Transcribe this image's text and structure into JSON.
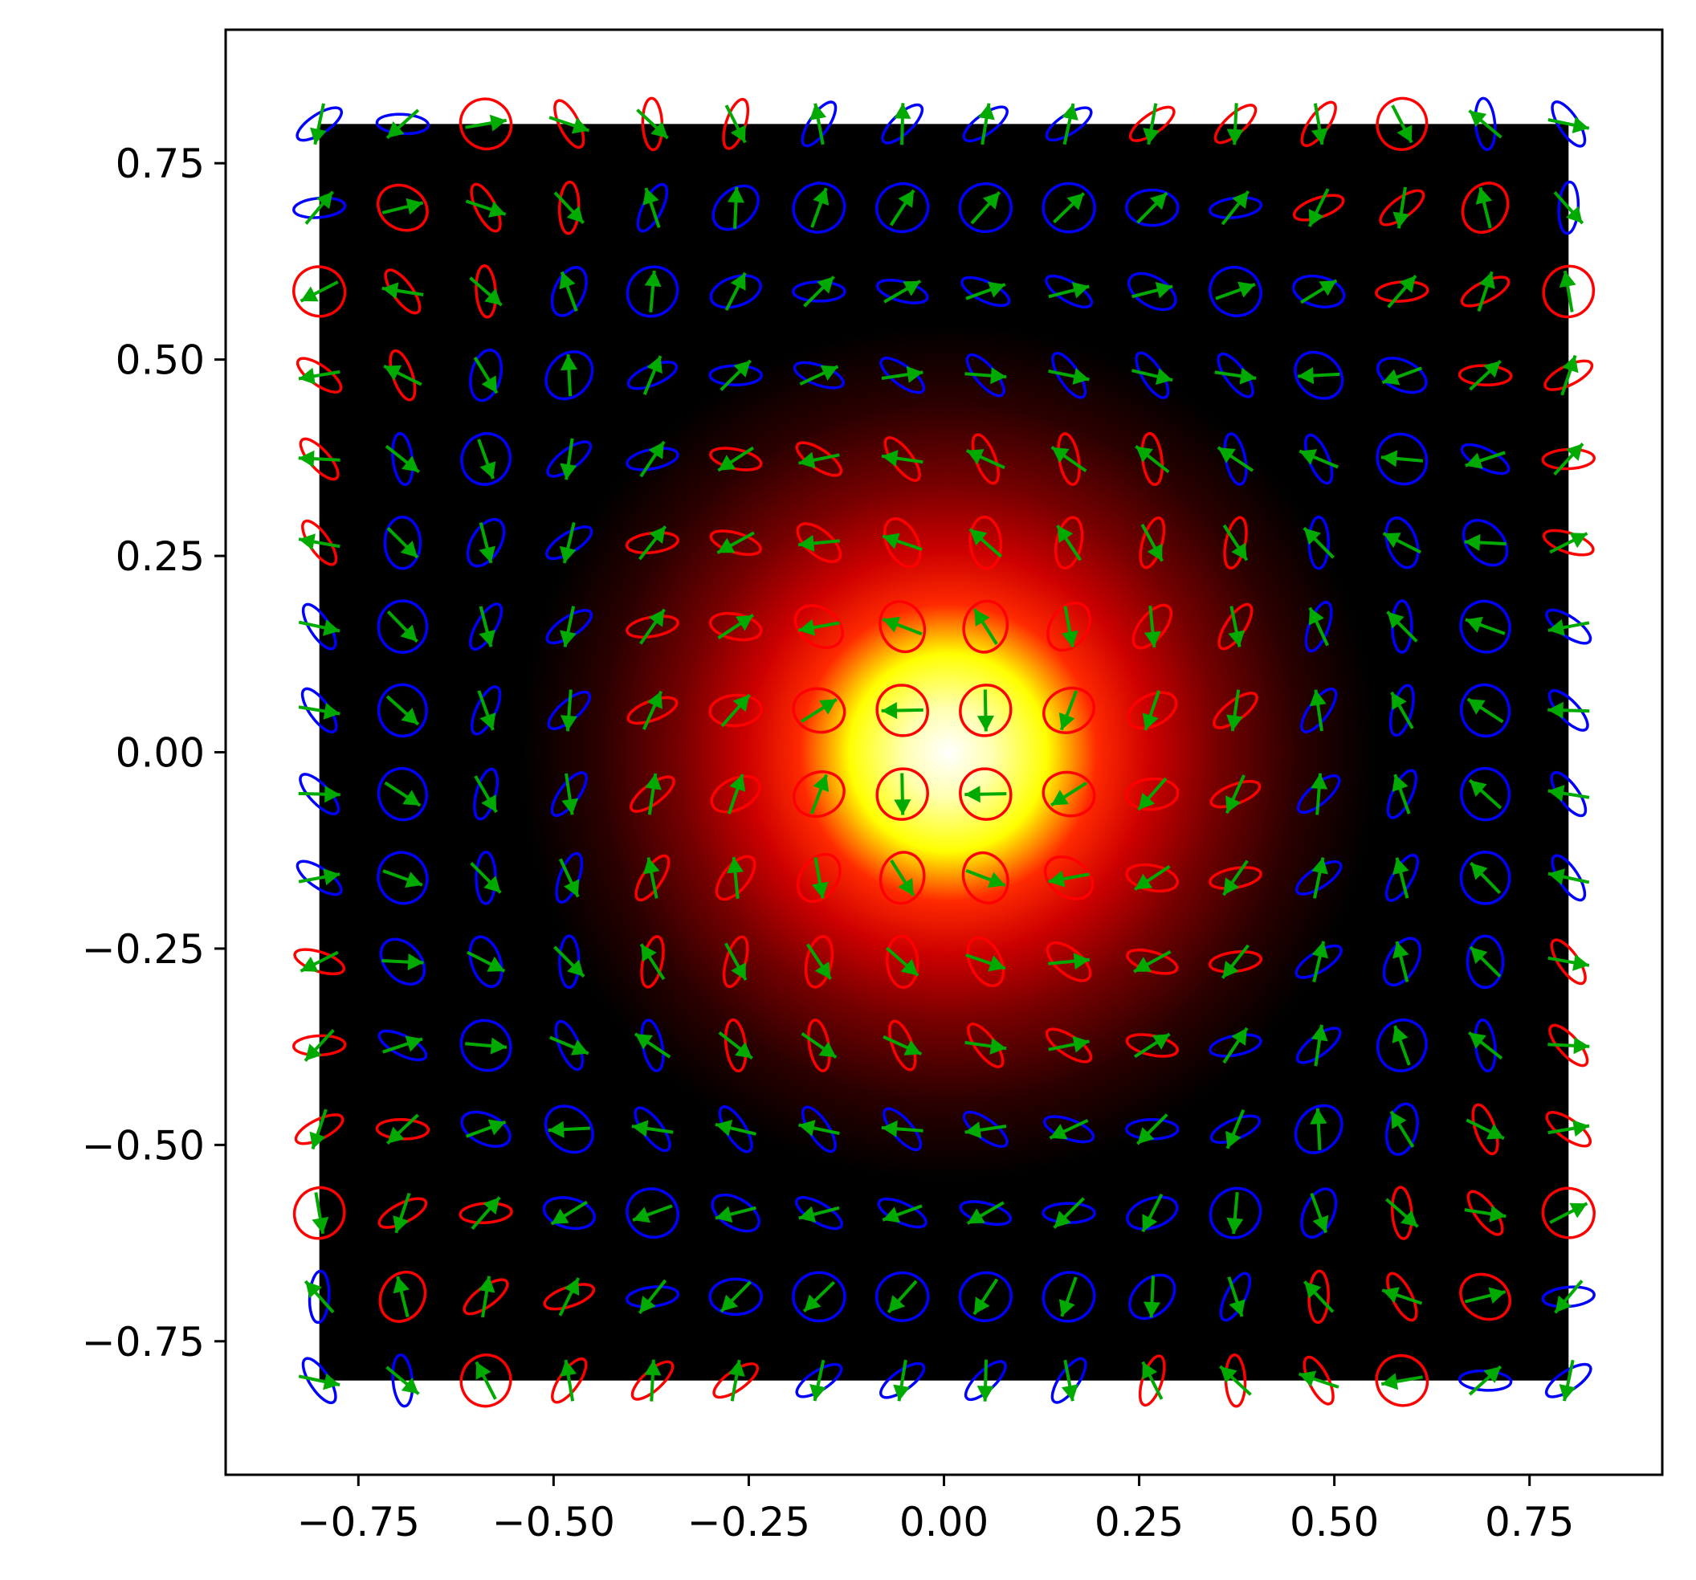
{
  "chart_data": {
    "type": "scatter",
    "title": "",
    "xlabel": "",
    "ylabel": "",
    "xlim": [
      -0.92,
      0.92
    ],
    "ylim": [
      -0.92,
      0.92
    ],
    "grid": false,
    "legend": null,
    "x_ticks": [
      {
        "value": -0.75,
        "label": "−0.75"
      },
      {
        "value": -0.5,
        "label": "−0.50"
      },
      {
        "value": -0.25,
        "label": "−0.25"
      },
      {
        "value": 0.0,
        "label": "0.00"
      },
      {
        "value": 0.25,
        "label": "0.25"
      },
      {
        "value": 0.5,
        "label": "0.50"
      },
      {
        "value": 0.75,
        "label": "0.75"
      }
    ],
    "y_ticks": [
      {
        "value": 0.75,
        "label": "0.75"
      },
      {
        "value": 0.5,
        "label": "0.50"
      },
      {
        "value": 0.25,
        "label": "0.25"
      },
      {
        "value": 0.0,
        "label": "0.00"
      },
      {
        "value": -0.25,
        "label": "−0.25"
      },
      {
        "value": -0.5,
        "label": "−0.50"
      },
      {
        "value": -0.75,
        "label": "−0.75"
      }
    ],
    "background_image": {
      "type": "heatmap",
      "colormap": "hot",
      "extent": [
        -0.8,
        0.8,
        -0.8,
        0.8
      ],
      "description_value": "gaussian intensity peak at origin"
    },
    "grid_points": {
      "x": [
        -0.8,
        -0.6933,
        -0.5867,
        -0.48,
        -0.3733,
        -0.2667,
        -0.16,
        -0.0533,
        0.0533,
        0.16,
        0.2667,
        0.3733,
        0.48,
        0.5867,
        0.6933,
        0.8
      ],
      "y": [
        -0.8,
        -0.6933,
        -0.5867,
        -0.48,
        -0.3733,
        -0.2667,
        -0.16,
        -0.0533,
        0.0533,
        0.16,
        0.2667,
        0.3733,
        0.48,
        0.5867,
        0.6933,
        0.8
      ]
    },
    "marker_colors": {
      "ellipse_positive": "#ff0000",
      "ellipse_negative": "#0000ff",
      "arrow": "#00aa00"
    }
  }
}
